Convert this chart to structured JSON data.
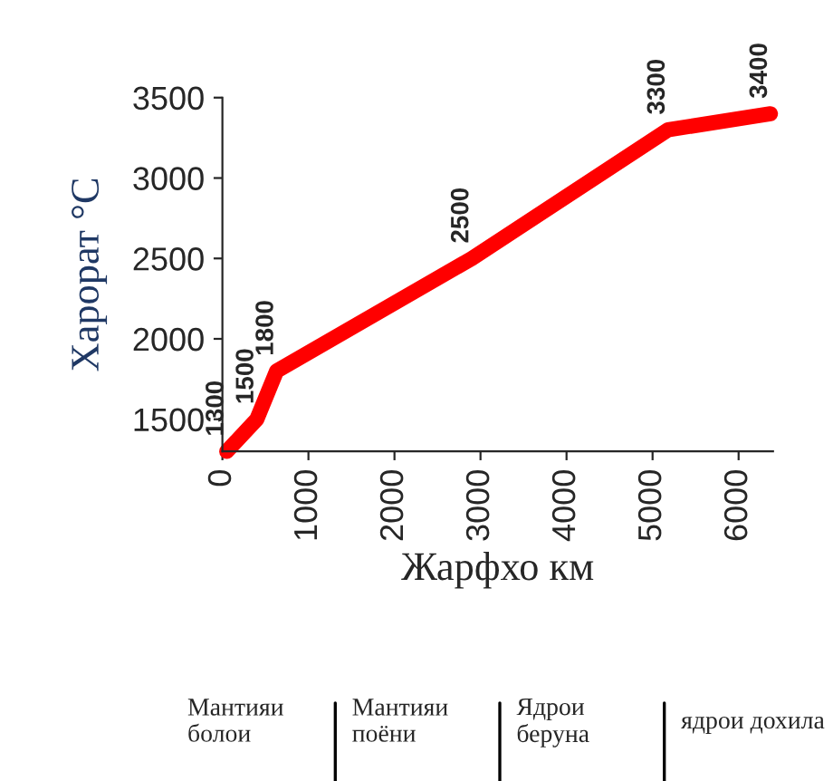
{
  "chart_data": {
    "type": "line",
    "xlabel": "Жарфхо км",
    "ylabel": "Харорат °C",
    "x": [
      50,
      400,
      630,
      2900,
      5180,
      6370
    ],
    "series": [
      {
        "color": "#ff0000",
        "values": [
          1300,
          1500,
          1800,
          2500,
          3300,
          3400
        ]
      }
    ],
    "data_labels": true,
    "xlim": [
      0,
      6400
    ],
    "xticks": [
      0,
      1000,
      2000,
      3000,
      4000,
      5000,
      6000
    ],
    "ylim": [
      1300,
      3500
    ],
    "yticks": [
      1500,
      2000,
      2500,
      3000,
      3500
    ],
    "grid": false,
    "legend": false,
    "marker": "none",
    "line_style": "solid",
    "annotations": [
      "Мантияи\nболои",
      "Мантияи\nпоёни",
      "Ядрои\nберуна",
      "ядрои дохила"
    ]
  }
}
